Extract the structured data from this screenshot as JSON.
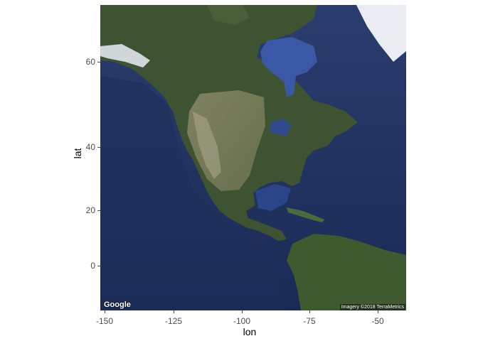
{
  "axes": {
    "x_title": "lon",
    "y_title": "lat",
    "x_ticks": [
      "-150",
      "-125",
      "-100",
      "-75",
      "-50"
    ],
    "y_ticks": [
      "60",
      "40",
      "20",
      "0"
    ]
  },
  "map": {
    "type": "satellite",
    "region": "North America",
    "logo": "Google",
    "attribution": "Imagery ©2018 TerraMetrics",
    "colors": {
      "ocean": "#1f2f5c",
      "land": "#3c5230",
      "ice": "#f4f6f8"
    }
  }
}
